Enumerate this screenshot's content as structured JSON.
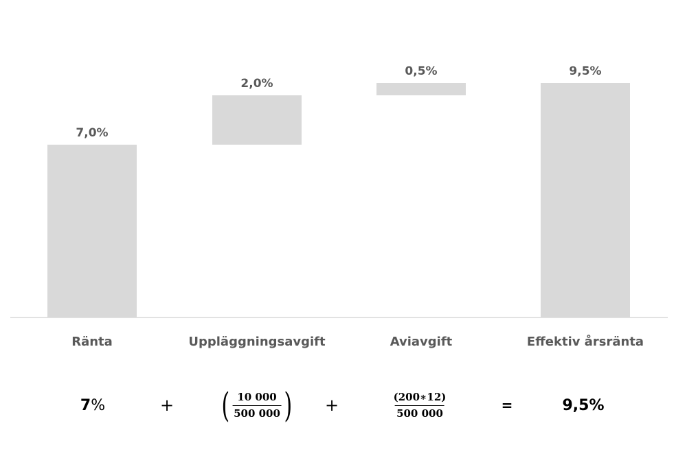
{
  "chart_data": {
    "type": "waterfall",
    "categories": [
      "Ränta",
      "Uppläggningsavgift",
      "Aviavgift",
      "Effektiv årsränta"
    ],
    "values": [
      7.0,
      2.0,
      0.5,
      9.5
    ],
    "base": [
      0,
      7.0,
      9.0,
      0
    ],
    "data_labels": [
      "7,0%",
      "2,0%",
      "0,5%",
      "9,5%"
    ],
    "unit": "%",
    "ylim": [
      0,
      11
    ],
    "grid": false,
    "legend": "none",
    "colors": {
      "bar": "#d9d9d9",
      "axis": "#d9d9d9",
      "text": "#595959"
    }
  },
  "formula": {
    "term1_bold": "7",
    "term1_rest": "%",
    "op1": "+",
    "frac1_open": "(",
    "frac1_num": "10 000",
    "frac1_den": "500 000",
    "frac1_close": ")",
    "op2": "+",
    "frac2_num": "(200∗12)",
    "frac2_den": "500 000",
    "eq": "=",
    "result": "9,5%"
  }
}
